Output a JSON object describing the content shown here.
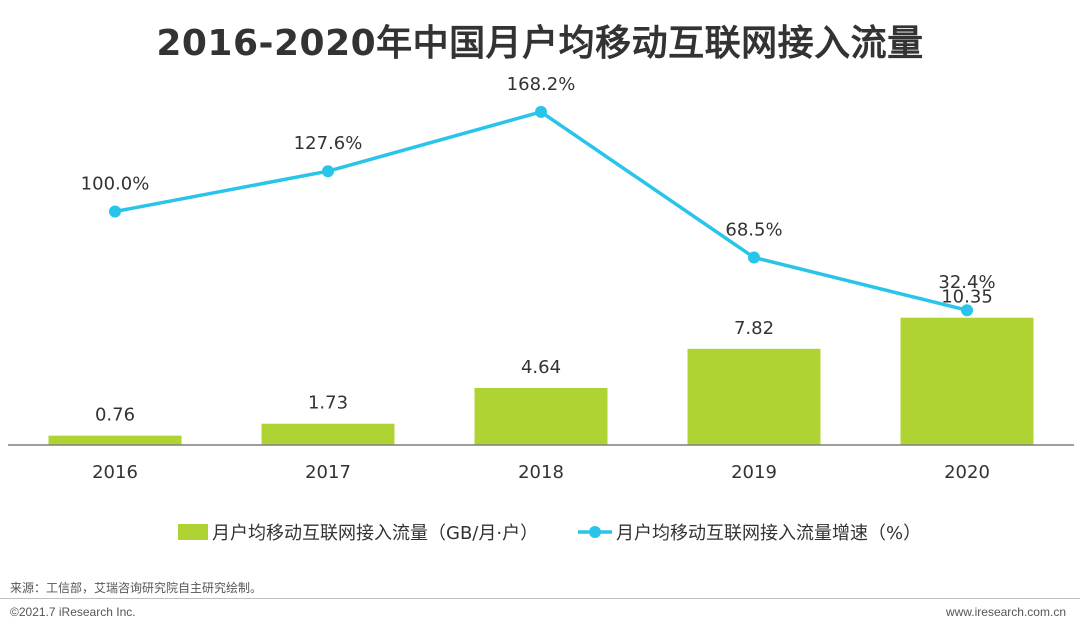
{
  "title": "2016-2020年中国月户均移动互联网接入流量",
  "source": "来源：工信部，艾瑞咨询研究院自主研究绘制。",
  "copyright": "©2021.7 iResearch Inc.",
  "website": "www.iresearch.com.cn",
  "colors": {
    "bar": "#b0d334",
    "line": "#29c4ea",
    "axis": "#7f7f7f",
    "text": "#333333"
  },
  "chart_data": {
    "type": "bar",
    "title": "2016-2020年中国月户均移动互联网接入流量",
    "categories": [
      "2016",
      "2017",
      "2018",
      "2019",
      "2020"
    ],
    "series": [
      {
        "name": "月户均移动互联网接入流量（GB/月·户）",
        "type": "bar",
        "values": [
          0.76,
          1.73,
          4.64,
          7.82,
          10.35
        ],
        "labels": [
          "0.76",
          "1.73",
          "4.64",
          "7.82",
          "10.35"
        ]
      },
      {
        "name": "月户均移动互联网接入流量增速（%）",
        "type": "line",
        "values": [
          100.0,
          127.6,
          168.2,
          68.5,
          32.4
        ],
        "labels": [
          "100.0%",
          "127.6%",
          "168.2%",
          "68.5%",
          "32.4%"
        ]
      }
    ],
    "legend_position": "bottom",
    "grid": false
  }
}
